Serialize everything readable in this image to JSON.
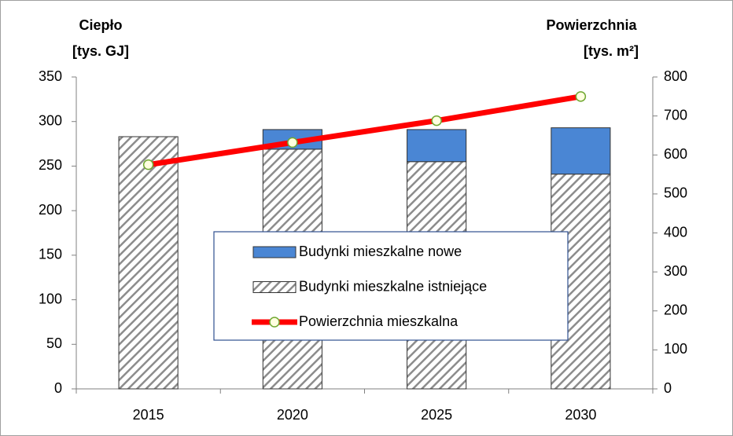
{
  "chart_data": {
    "type": "bar",
    "y_label": [
      "Ciepło",
      "[tys. GJ]"
    ],
    "y2_label": [
      "Powierzchnia",
      "[tys. m²]"
    ],
    "categories": [
      "2015",
      "2020",
      "2025",
      "2030"
    ],
    "series": [
      {
        "name": "Budynki mieszkalne nowe",
        "color": "#4a86d4",
        "values": [
          0,
          22,
          36,
          52
        ],
        "stack_order": 1
      },
      {
        "name": "Budynki mieszkalne istniejące",
        "color": "hatch",
        "values": [
          283,
          269,
          255,
          241
        ],
        "stack_order": 0
      },
      {
        "name": "Powierzchnia mieszkalna",
        "color": "#ff0000",
        "type": "line",
        "axis": "y2",
        "values": [
          575,
          632,
          688,
          750
        ]
      }
    ],
    "ylim": [
      0,
      350
    ],
    "yticks": [
      0,
      50,
      100,
      150,
      200,
      250,
      300,
      350
    ],
    "y2lim": [
      0,
      800
    ],
    "y2ticks": [
      0,
      100,
      200,
      300,
      400,
      500,
      600,
      700,
      800
    ]
  }
}
